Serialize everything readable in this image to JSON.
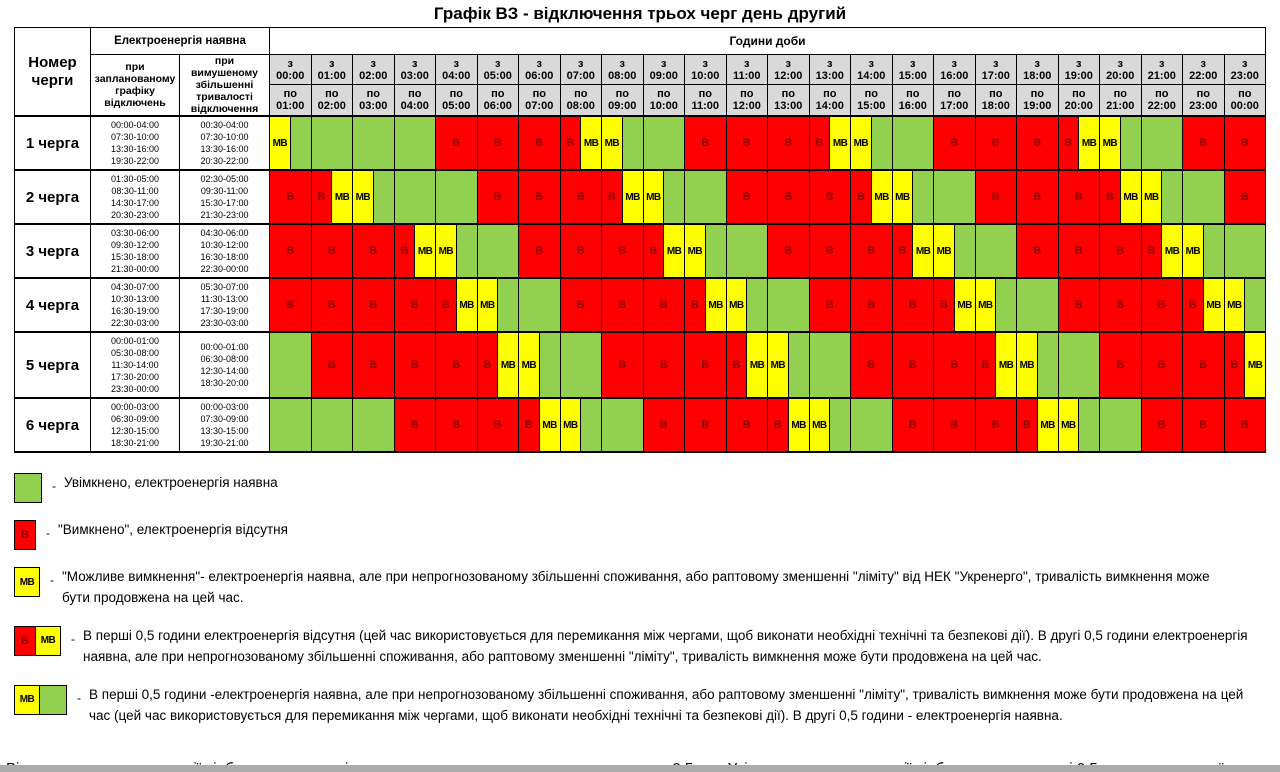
{
  "title": "Графік ВЗ - відключення трьох черг день другий",
  "table": {
    "corner_header": "Номер черги",
    "availability_header": "Електроенергія наявна",
    "planned_header": "при запланованому графіку відключень",
    "forced_header": "при вимушеному збільшенні тривалості відключення",
    "hours_header": "Години доби",
    "from_prefix": "з",
    "to_prefix": "по",
    "off_letter": "В",
    "maybe_letter": "МВ"
  },
  "colors": {
    "on": "#92D050",
    "off": "#FF0000",
    "maybe": "#FFFF00",
    "off_letter": "#8B0000",
    "header_bg": "#D9D9D9"
  },
  "chart_data": {
    "type": "heatmap",
    "title": "Графік ВЗ - відключення трьох черг день другий",
    "x_label": "Години доби",
    "y_label": "Номер черги",
    "cell_states": {
      "G": "увімкнено, електроенергія наявна",
      "B": "вимкнено, електроенергія відсутня",
      "M": "можливе вимкнення",
      "BM": "перші 0,5 год вимкнено, другі 0,5 год можливе вимкнення",
      "MG": "перші 0,5 год можливе вимкнення, другі 0,5 год увімкнено"
    },
    "hours": [
      {
        "from": "00:00",
        "to": "01:00"
      },
      {
        "from": "01:00",
        "to": "02:00"
      },
      {
        "from": "02:00",
        "to": "03:00"
      },
      {
        "from": "03:00",
        "to": "04:00"
      },
      {
        "from": "04:00",
        "to": "05:00"
      },
      {
        "from": "05:00",
        "to": "06:00"
      },
      {
        "from": "06:00",
        "to": "07:00"
      },
      {
        "from": "07:00",
        "to": "08:00"
      },
      {
        "from": "08:00",
        "to": "09:00"
      },
      {
        "from": "09:00",
        "to": "10:00"
      },
      {
        "from": "10:00",
        "to": "11:00"
      },
      {
        "from": "11:00",
        "to": "12:00"
      },
      {
        "from": "12:00",
        "to": "13:00"
      },
      {
        "from": "13:00",
        "to": "14:00"
      },
      {
        "from": "14:00",
        "to": "15:00"
      },
      {
        "from": "15:00",
        "to": "16:00"
      },
      {
        "from": "16:00",
        "to": "17:00"
      },
      {
        "from": "17:00",
        "to": "18:00"
      },
      {
        "from": "18:00",
        "to": "19:00"
      },
      {
        "from": "19:00",
        "to": "20:00"
      },
      {
        "from": "20:00",
        "to": "21:00"
      },
      {
        "from": "21:00",
        "to": "22:00"
      },
      {
        "from": "22:00",
        "to": "23:00"
      },
      {
        "from": "23:00",
        "to": "00:00"
      }
    ],
    "rows": [
      {
        "label": "1 черга",
        "planned": [
          "00:00-04:00",
          "07:30-10:00",
          "13:30-16:00",
          "19:30-22:00"
        ],
        "forced": [
          "00:30-04:00",
          "07:30-10:00",
          "13:30-16:00",
          "20:30-22:00"
        ],
        "cells": [
          "MG",
          "G",
          "G",
          "G",
          "B",
          "B",
          "B",
          "BM",
          "MG",
          "G",
          "B",
          "B",
          "B",
          "BM",
          "MG",
          "G",
          "B",
          "B",
          "B",
          "BM",
          "MG",
          "G",
          "B",
          "B"
        ]
      },
      {
        "label": "2 черга",
        "planned": [
          "01:30-05:00",
          "08:30-11:00",
          "14:30-17:00",
          "20:30-23:00"
        ],
        "forced": [
          "02:30-05:00",
          "09:30-11:00",
          "15:30-17:00",
          "21:30-23:00"
        ],
        "cells": [
          "B",
          "BM",
          "MG",
          "G",
          "G",
          "B",
          "B",
          "B",
          "BM",
          "MG",
          "G",
          "B",
          "B",
          "B",
          "BM",
          "MG",
          "G",
          "B",
          "B",
          "B",
          "BM",
          "MG",
          "G",
          "B"
        ]
      },
      {
        "label": "3 черга",
        "planned": [
          "03:30-06:00",
          "09:30-12:00",
          "15:30-18:00",
          "21:30-00:00"
        ],
        "forced": [
          "04:30-06:00",
          "10:30-12:00",
          "16:30-18:00",
          "22:30-00:00"
        ],
        "cells": [
          "B",
          "B",
          "B",
          "BM",
          "MG",
          "G",
          "B",
          "B",
          "B",
          "BM",
          "MG",
          "G",
          "B",
          "B",
          "B",
          "BM",
          "MG",
          "G",
          "B",
          "B",
          "B",
          "BM",
          "MG",
          "G"
        ]
      },
      {
        "label": "4 черга",
        "planned": [
          "04:30-07:00",
          "10:30-13:00",
          "16:30-19:00",
          "22:30-03:00"
        ],
        "forced": [
          "05:30-07:00",
          "11:30-13:00",
          "17:30-19:00",
          "23:30-03:00"
        ],
        "cells": [
          "B",
          "B",
          "B",
          "B",
          "BM",
          "MG",
          "G",
          "B",
          "B",
          "B",
          "BM",
          "MG",
          "G",
          "B",
          "B",
          "B",
          "BM",
          "MG",
          "G",
          "B",
          "B",
          "B",
          "BM",
          "MG"
        ]
      },
      {
        "label": "5 черга",
        "planned": [
          "00:00-01:00",
          "05:30-08:00",
          "11:30-14:00",
          "17:30-20:00",
          "23:30-00:00"
        ],
        "forced": [
          "00:00-01:00",
          "06:30-08:00",
          "12:30-14:00",
          "18:30-20:00"
        ],
        "cells": [
          "G",
          "B",
          "B",
          "B",
          "B",
          "BM",
          "MG",
          "G",
          "B",
          "B",
          "B",
          "BM",
          "MG",
          "G",
          "B",
          "B",
          "B",
          "BM",
          "MG",
          "G",
          "B",
          "B",
          "B",
          "BM"
        ]
      },
      {
        "label": "6 черга",
        "planned": [
          "00:00-03:00",
          "06:30-09:00",
          "12:30-15:00",
          "18:30-21:00"
        ],
        "forced": [
          "00:00-03:00",
          "07:30-09:00",
          "13:30-15:00",
          "19:30-21:00"
        ],
        "cells": [
          "G",
          "G",
          "G",
          "B",
          "B",
          "B",
          "BM",
          "MG",
          "G",
          "B",
          "B",
          "B",
          "BM",
          "MG",
          "G",
          "B",
          "B",
          "B",
          "BM",
          "MG",
          "G",
          "B",
          "B",
          "B"
        ]
      }
    ]
  },
  "legend": {
    "dash": "-",
    "items": [
      {
        "swatch": "G",
        "text": "Увімкнено, електроенергія наявна"
      },
      {
        "swatch": "B",
        "text": "\"Вимкнено\", електроенергія відсутня"
      },
      {
        "swatch": "M",
        "text": "\"Можливе вимкнення\"- електроенергія наявна, але при непрогнозованому збільшенні споживання, або раптовому зменшенні \"ліміту\" від НЕК \"Укренерго\", тривалість вимкнення може бути продовжена на цей час."
      },
      {
        "swatch": "BM",
        "text": "В перші 0,5 години електроенергія відсутня (цей час використовується для перемикання між чергами, щоб виконати необхідні технічні та безпекові дії). В другі 0,5 години електроенергія наявна, але при непрогнозованому збільшенні споживання, або раптовому зменшенні \"ліміту\", тривалість вимкнення може бути продовжена на цей час."
      },
      {
        "swatch": "MG",
        "text": "В перші 0,5 години -електроенергія наявна, але при непрогнозованому збільшенні споживання, або раптовому зменшенні \"ліміту\", тривалість вимкнення може бути продовжена на цей час (цей час використовується для перемикання між чергами, щоб виконати необхідні технічні та безпекові дії). В другі 0,5 години - електроенергія наявна."
      }
    ]
  },
  "footer_note": "Відключення електроенергії відбувається не раніше зазначеного часу початку черги, впродовж 0,5 год. Увімкнення електроенергії відбувається в останні 0,5 години вимкненої черги, після того як буде виконано вимкнення споживачів наступної черги."
}
